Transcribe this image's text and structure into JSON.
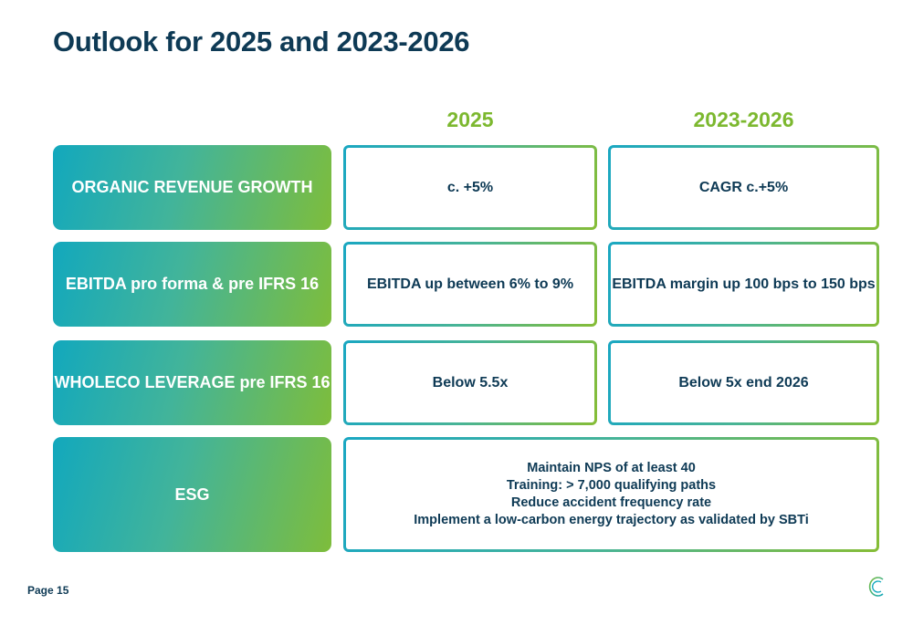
{
  "title": "Outlook for 2025 and 2023-2026",
  "columns": [
    "2025",
    "2023-2026"
  ],
  "rows": [
    {
      "label": "ORGANIC REVENUE GROWTH",
      "col1": "c. +5%",
      "col2": "CAGR c.+5%"
    },
    {
      "label": "EBITDA pro forma & pre IFRS 16",
      "col1": "EBITDA up between 6% to 9%",
      "col2": "EBITDA margin up 100 bps to 150 bps"
    },
    {
      "label": "WHOLECO LEVERAGE pre IFRS 16",
      "col1": "Below 5.5x",
      "col2": "Below 5x end 2026"
    }
  ],
  "esg": {
    "label": "ESG",
    "lines": [
      "Maintain NPS of at least 40",
      "Training: > 7,000 qualifying paths",
      "Reduce accident frequency rate",
      "Implement a low-carbon energy trajectory as validated by SBTi"
    ]
  },
  "footer": {
    "page": "Page 15"
  },
  "colors": {
    "navy": "#0e3a55",
    "accent_green": "#7cb82f",
    "teal": "#12a8bd"
  },
  "icons": {
    "logo": "company-logo-icon"
  }
}
